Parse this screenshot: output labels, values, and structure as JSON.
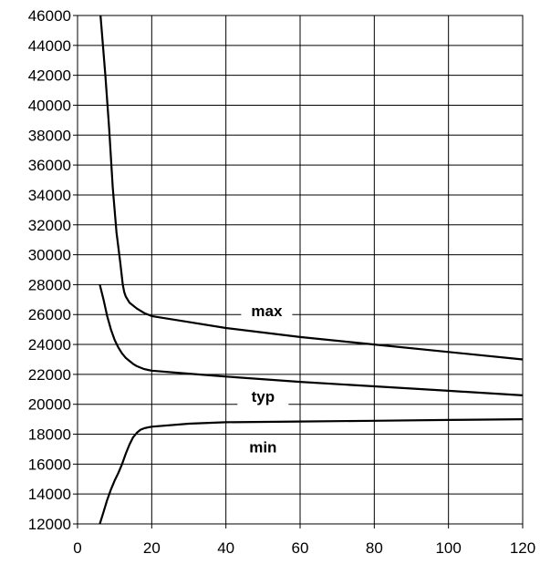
{
  "chart_data": {
    "type": "line",
    "title": "",
    "xlabel": "",
    "ylabel": "",
    "xlim": [
      0,
      120
    ],
    "ylim": [
      12000,
      46000
    ],
    "xticks": [
      "0",
      "20",
      "40",
      "60",
      "80",
      "100",
      "120"
    ],
    "yticks": [
      "12000",
      "14000",
      "16000",
      "18000",
      "20000",
      "22000",
      "24000",
      "26000",
      "28000",
      "30000",
      "32000",
      "34000",
      "36000",
      "38000",
      "40000",
      "42000",
      "44000",
      "46000"
    ],
    "grid": true,
    "series": [
      {
        "name": "max",
        "x": [
          6.2,
          7.5,
          8.5,
          9.5,
          10.5,
          11.5,
          12.2,
          12.6,
          13,
          14,
          16,
          18,
          20,
          30,
          40,
          60,
          80,
          100,
          120
        ],
        "y": [
          46000,
          42000,
          38500,
          34500,
          31500,
          29500,
          28000,
          27500,
          27200,
          26800,
          26400,
          26100,
          25900,
          25500,
          25100,
          24500,
          24000,
          23500,
          23000
        ]
      },
      {
        "name": "typ",
        "x": [
          6,
          7,
          8,
          9,
          10,
          11,
          12,
          13,
          14,
          15,
          16,
          17,
          18,
          19,
          20,
          30,
          40,
          60,
          80,
          100,
          120
        ],
        "y": [
          28000,
          27000,
          25900,
          25000,
          24300,
          23800,
          23400,
          23100,
          22900,
          22700,
          22550,
          22450,
          22350,
          22300,
          22250,
          22050,
          21850,
          21500,
          21200,
          20900,
          20600
        ]
      },
      {
        "name": "min",
        "x": [
          6,
          7,
          8,
          9,
          10,
          11,
          12,
          13,
          14,
          15,
          16,
          17,
          18,
          19,
          20,
          30,
          40,
          60,
          80,
          100,
          120
        ],
        "y": [
          12000,
          12800,
          13600,
          14300,
          14900,
          15400,
          16000,
          16700,
          17300,
          17800,
          18100,
          18300,
          18400,
          18450,
          18500,
          18700,
          18800,
          18850,
          18900,
          18950,
          19000
        ]
      }
    ],
    "annotations": [
      {
        "text": "max",
        "x": 51,
        "y": 26000
      },
      {
        "text": "typ",
        "x": 50,
        "y": 20300
      },
      {
        "text": "min",
        "x": 50,
        "y": 16900
      }
    ]
  }
}
